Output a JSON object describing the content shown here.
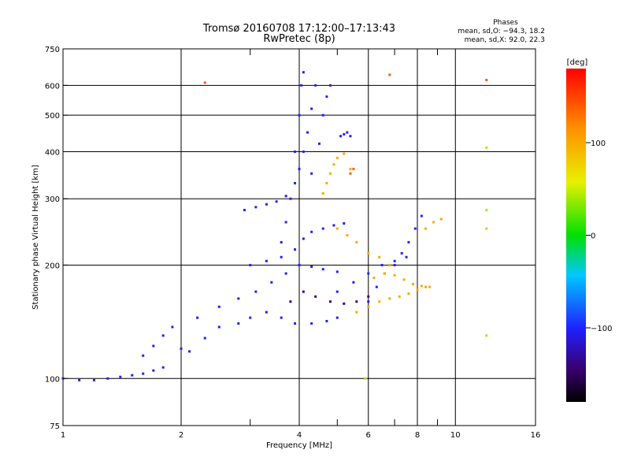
{
  "header": {
    "title_line1": "Tromsø 20160708 17:12:00–17:13:43",
    "title_line2": "RwPretec (8p)"
  },
  "stats": {
    "heading": "Phases",
    "line_o": "mean, sd,O: −94.3, 18.2",
    "line_x": "mean, sd,X:  92.0, 22.3"
  },
  "colorbar": {
    "label": "[deg]",
    "ticks": [
      {
        "value": 100,
        "label": "100"
      },
      {
        "value": 0,
        "label": "0"
      },
      {
        "value": -100,
        "label": "−100"
      }
    ],
    "range": [
      -180,
      180
    ]
  },
  "chart_data": {
    "type": "scatter",
    "title": "Tromsø 20160708 17:12:00–17:13:43",
    "subtitle": "RwPretec (8p)",
    "xlabel": "Frequency [MHz]",
    "ylabel": "Stationary phase Virtual Height [km]",
    "x_scale": "log",
    "y_scale": "log",
    "xlim": [
      1,
      16
    ],
    "ylim": [
      75,
      750
    ],
    "grid": true,
    "x_ticks": [
      {
        "value": 1,
        "label": "1"
      },
      {
        "value": 2,
        "label": "2"
      },
      {
        "value": 4,
        "label": "4"
      },
      {
        "value": 6,
        "label": "6"
      },
      {
        "value": 8,
        "label": "8"
      },
      {
        "value": 10,
        "label": "10"
      },
      {
        "value": 16,
        "label": "16"
      }
    ],
    "x_minor": [
      3,
      5,
      7,
      9
    ],
    "y_ticks": [
      {
        "value": 75,
        "label": "75"
      },
      {
        "value": 100,
        "label": "100"
      },
      {
        "value": 200,
        "label": "200"
      },
      {
        "value": 300,
        "label": "300"
      },
      {
        "value": 400,
        "label": "400"
      },
      {
        "value": 500,
        "label": "500"
      },
      {
        "value": 600,
        "label": "600"
      },
      {
        "value": 750,
        "label": "750"
      }
    ],
    "color_scale": "rainbow phase [deg]",
    "traces": [
      {
        "phase": -100,
        "points": [
          [
            1.0,
            100
          ],
          [
            1.1,
            99
          ],
          [
            1.2,
            99
          ],
          [
            1.3,
            100
          ],
          [
            1.4,
            101
          ],
          [
            1.5,
            102
          ],
          [
            1.6,
            103
          ],
          [
            1.7,
            105
          ],
          [
            1.8,
            107
          ]
        ]
      },
      {
        "phase": -100,
        "points": [
          [
            1.6,
            115
          ],
          [
            1.7,
            122
          ],
          [
            1.8,
            130
          ],
          [
            1.9,
            137
          ],
          [
            2.0,
            120
          ],
          [
            2.1,
            118
          ],
          [
            2.3,
            128
          ],
          [
            2.5,
            137
          ],
          [
            2.8,
            140
          ],
          [
            3.0,
            145
          ],
          [
            3.3,
            150
          ],
          [
            3.6,
            145
          ],
          [
            3.9,
            140
          ],
          [
            4.3,
            140
          ],
          [
            4.7,
            142
          ],
          [
            5.0,
            145
          ]
        ]
      },
      {
        "phase": -100,
        "points": [
          [
            2.2,
            145
          ],
          [
            2.5,
            155
          ],
          [
            2.8,
            163
          ],
          [
            3.1,
            170
          ],
          [
            3.4,
            180
          ],
          [
            3.7,
            190
          ],
          [
            4.0,
            200
          ],
          [
            4.3,
            198
          ],
          [
            4.6,
            195
          ],
          [
            5.0,
            192
          ]
        ]
      },
      {
        "phase": -100,
        "points": [
          [
            3.0,
            200
          ],
          [
            3.3,
            205
          ],
          [
            3.6,
            210
          ],
          [
            3.9,
            220
          ],
          [
            4.1,
            235
          ],
          [
            4.3,
            245
          ],
          [
            4.6,
            250
          ],
          [
            4.9,
            255
          ],
          [
            5.2,
            258
          ]
        ]
      },
      {
        "phase": -100,
        "points": [
          [
            2.9,
            280
          ],
          [
            3.1,
            285
          ],
          [
            3.3,
            290
          ],
          [
            3.5,
            295
          ],
          [
            3.7,
            305
          ],
          [
            3.9,
            330
          ],
          [
            4.0,
            360
          ],
          [
            4.1,
            400
          ],
          [
            4.2,
            450
          ],
          [
            4.3,
            520
          ],
          [
            4.4,
            600
          ]
        ]
      },
      {
        "phase": -100,
        "points": [
          [
            3.6,
            230
          ],
          [
            3.7,
            260
          ],
          [
            3.8,
            300
          ],
          [
            3.9,
            400
          ],
          [
            4.0,
            500
          ],
          [
            4.05,
            600
          ],
          [
            4.1,
            650
          ]
        ]
      },
      {
        "phase": -100,
        "points": [
          [
            4.3,
            350
          ],
          [
            4.5,
            420
          ],
          [
            4.6,
            500
          ],
          [
            4.7,
            560
          ],
          [
            4.8,
            600
          ]
        ]
      },
      {
        "phase": -100,
        "points": [
          [
            5.1,
            440
          ],
          [
            5.2,
            445
          ],
          [
            5.3,
            450
          ],
          [
            5.4,
            440
          ]
        ]
      },
      {
        "phase": -100,
        "points": [
          [
            6.0,
            160
          ],
          [
            6.3,
            175
          ],
          [
            6.6,
            190
          ],
          [
            7.0,
            200
          ],
          [
            7.3,
            215
          ],
          [
            7.6,
            230
          ],
          [
            7.9,
            250
          ],
          [
            8.2,
            270
          ]
        ]
      },
      {
        "phase": -100,
        "points": [
          [
            5.0,
            170
          ],
          [
            5.5,
            180
          ],
          [
            6.0,
            190
          ],
          [
            6.5,
            200
          ],
          [
            7.0,
            205
          ],
          [
            7.5,
            210
          ]
        ]
      },
      {
        "phase": 100,
        "points": [
          [
            4.6,
            310
          ],
          [
            4.7,
            330
          ],
          [
            4.8,
            350
          ],
          [
            4.9,
            370
          ],
          [
            5.0,
            385
          ],
          [
            5.2,
            395
          ],
          [
            5.4,
            360
          ]
        ]
      },
      {
        "phase": 100,
        "points": [
          [
            5.0,
            250
          ],
          [
            5.3,
            240
          ],
          [
            5.6,
            230
          ],
          [
            6.0,
            215
          ],
          [
            6.4,
            210
          ],
          [
            6.8,
            200
          ]
        ]
      },
      {
        "phase": 100,
        "points": [
          [
            5.6,
            150
          ],
          [
            6.0,
            155
          ],
          [
            6.4,
            160
          ],
          [
            6.8,
            163
          ],
          [
            7.2,
            165
          ],
          [
            7.6,
            168
          ],
          [
            8.0,
            172
          ],
          [
            8.4,
            175
          ]
        ]
      },
      {
        "phase": 100,
        "points": [
          [
            6.2,
            185
          ],
          [
            6.6,
            190
          ],
          [
            7.0,
            188
          ],
          [
            7.4,
            183
          ],
          [
            7.8,
            178
          ],
          [
            8.2,
            176
          ],
          [
            8.6,
            175
          ]
        ]
      },
      {
        "phase": 100,
        "points": [
          [
            8.4,
            250
          ],
          [
            8.8,
            260
          ],
          [
            9.2,
            265
          ]
        ]
      },
      {
        "phase": 140,
        "points": [
          [
            5.4,
            350
          ],
          [
            5.5,
            360
          ],
          [
            6.8,
            640
          ],
          [
            12.0,
            620
          ],
          [
            2.3,
            610
          ]
        ]
      },
      {
        "phase": 40,
        "points": [
          [
            12.0,
            410
          ],
          [
            12.0,
            280
          ],
          [
            12.0,
            250
          ],
          [
            12.0,
            130
          ],
          [
            5.9,
            100
          ]
        ]
      },
      {
        "phase": -140,
        "points": [
          [
            3.8,
            160
          ],
          [
            4.1,
            170
          ],
          [
            4.4,
            165
          ],
          [
            4.8,
            160
          ],
          [
            5.2,
            158
          ],
          [
            5.6,
            160
          ],
          [
            6.0,
            165
          ]
        ]
      }
    ]
  }
}
